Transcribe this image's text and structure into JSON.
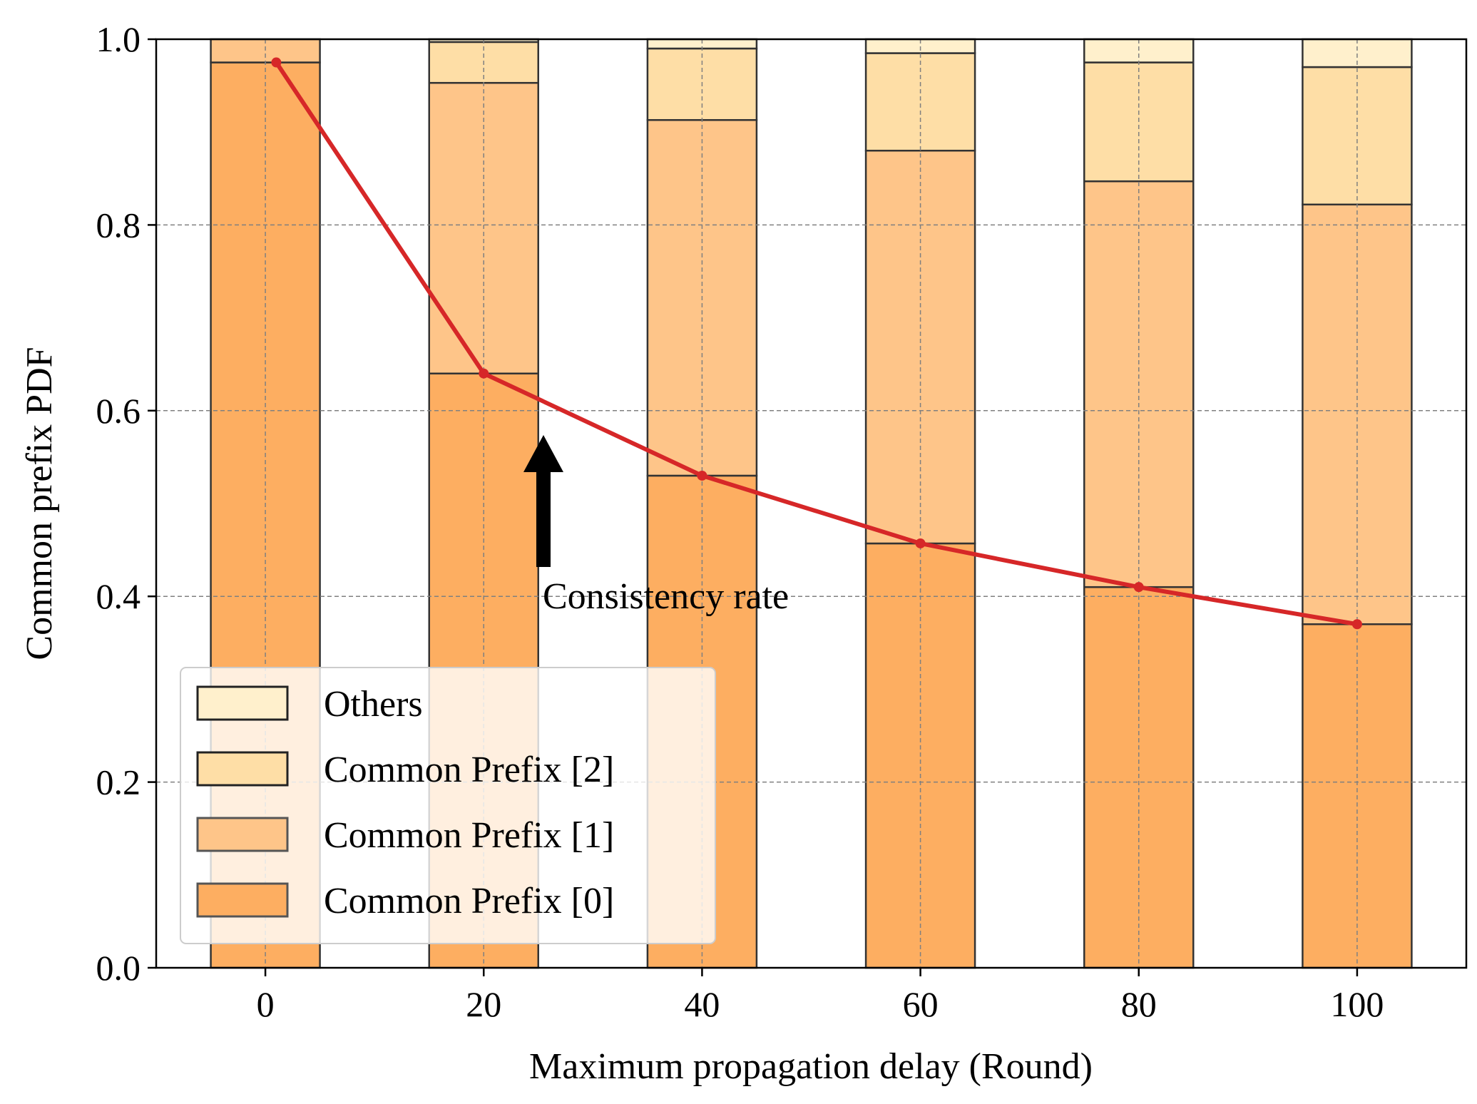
{
  "chart_data": {
    "type": "bar",
    "stacked": true,
    "title": "",
    "xlabel": "Maximum propagation delay (Round)",
    "ylabel": "Common prefix PDF",
    "x": [
      0,
      20,
      40,
      60,
      80,
      100
    ],
    "xlim": [
      -10,
      110
    ],
    "ylim": [
      0,
      1.0
    ],
    "xticks": [
      "0",
      "20",
      "40",
      "60",
      "80",
      "100"
    ],
    "yticks": [
      "0.0",
      "0.2",
      "0.4",
      "0.6",
      "0.8",
      "1.0"
    ],
    "grid": true,
    "legend_position": "lower-left",
    "series": [
      {
        "name": "Common Prefix [0]",
        "color": "#fdae61",
        "values": [
          0.975,
          0.64,
          0.53,
          0.457,
          0.41,
          0.37
        ]
      },
      {
        "name": "Common Prefix [1]",
        "color": "#fec589",
        "values": [
          0.025,
          0.313,
          0.383,
          0.423,
          0.437,
          0.452
        ]
      },
      {
        "name": "Common Prefix [2]",
        "color": "#fedea6",
        "values": [
          0.0,
          0.044,
          0.077,
          0.105,
          0.128,
          0.148
        ]
      },
      {
        "name": "Others",
        "color": "#fff0cc",
        "values": [
          0.0,
          0.003,
          0.01,
          0.015,
          0.025,
          0.03
        ]
      }
    ],
    "line_series": {
      "name": "Consistency rate",
      "color": "#d62728",
      "x": [
        1,
        20,
        40,
        60,
        80,
        100
      ],
      "values": [
        0.975,
        0.64,
        0.53,
        0.457,
        0.41,
        0.37
      ]
    },
    "annotations": [
      {
        "text": "Consistency rate",
        "arrow": "up",
        "x": 26,
        "y": 0.4
      }
    ]
  }
}
